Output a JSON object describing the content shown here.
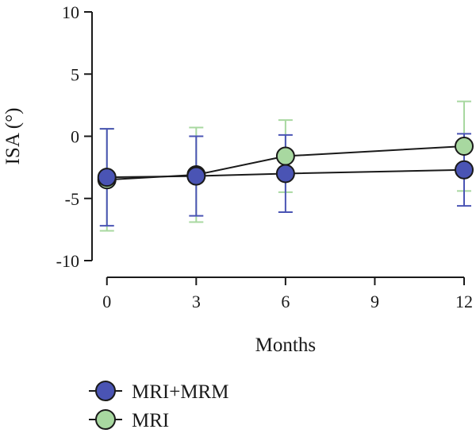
{
  "chart_data": {
    "type": "line",
    "xlabel": "Months",
    "ylabel": "ISA (°)",
    "xlim": [
      -0.5,
      12
    ],
    "ylim": [
      -10,
      10
    ],
    "x_ticks": [
      "0",
      "3",
      "6",
      "9",
      "12"
    ],
    "x_tick_values": [
      0,
      3,
      6,
      9,
      12
    ],
    "y_ticks": [
      "10",
      "5",
      "0",
      "-5",
      "-10"
    ],
    "y_tick_values": [
      10,
      5,
      0,
      -5,
      -10
    ],
    "grid": false,
    "legend_position": "bottom-left",
    "series": [
      {
        "name": "MRI",
        "marker_color": "#a8d8a0",
        "errorbar_color": "#a8d8a0",
        "x": [
          0,
          3,
          6,
          12
        ],
        "values": [
          -3.5,
          -3.1,
          -1.6,
          -0.8
        ],
        "error": [
          4.1,
          3.8,
          2.9,
          3.6
        ]
      },
      {
        "name": "MRI+MRM",
        "marker_color": "#4a54b4",
        "errorbar_color": "#4a54b4",
        "x": [
          0,
          3,
          6,
          12
        ],
        "values": [
          -3.3,
          -3.2,
          -3.0,
          -2.7
        ],
        "error": [
          3.9,
          3.2,
          3.1,
          2.9
        ]
      }
    ]
  },
  "legend": {
    "items": [
      {
        "label": "MRI+MRM",
        "color": "#4a54b4"
      },
      {
        "label": "MRI",
        "color": "#a8d8a0"
      }
    ]
  }
}
